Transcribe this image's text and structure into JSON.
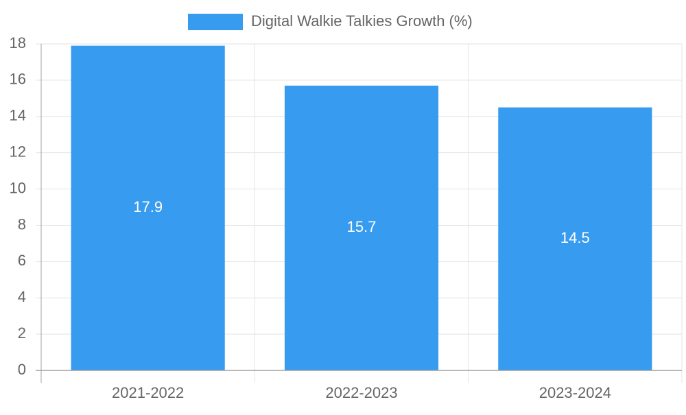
{
  "chart_data": {
    "type": "bar",
    "categories": [
      "2021-2022",
      "2022-2023",
      "2023-2024"
    ],
    "series": [
      {
        "name": "Digital Walkie Talkies Growth (%)",
        "values": [
          17.9,
          15.7,
          14.5
        ],
        "color": "#379BF0"
      }
    ],
    "data_labels": [
      "17.9",
      "15.7",
      "14.5"
    ],
    "ylim": [
      0,
      18
    ],
    "y_ticks": [
      0,
      2,
      4,
      6,
      8,
      10,
      12,
      14,
      16,
      18
    ],
    "xlabel": "",
    "ylabel": "",
    "grid": true,
    "legend_position": "top-center",
    "colors": {
      "bar": "#379BF0",
      "grid": "#E3E3E3",
      "axis": "#A0A0A0",
      "text": "#666666",
      "label": "#FFFFFF"
    }
  }
}
